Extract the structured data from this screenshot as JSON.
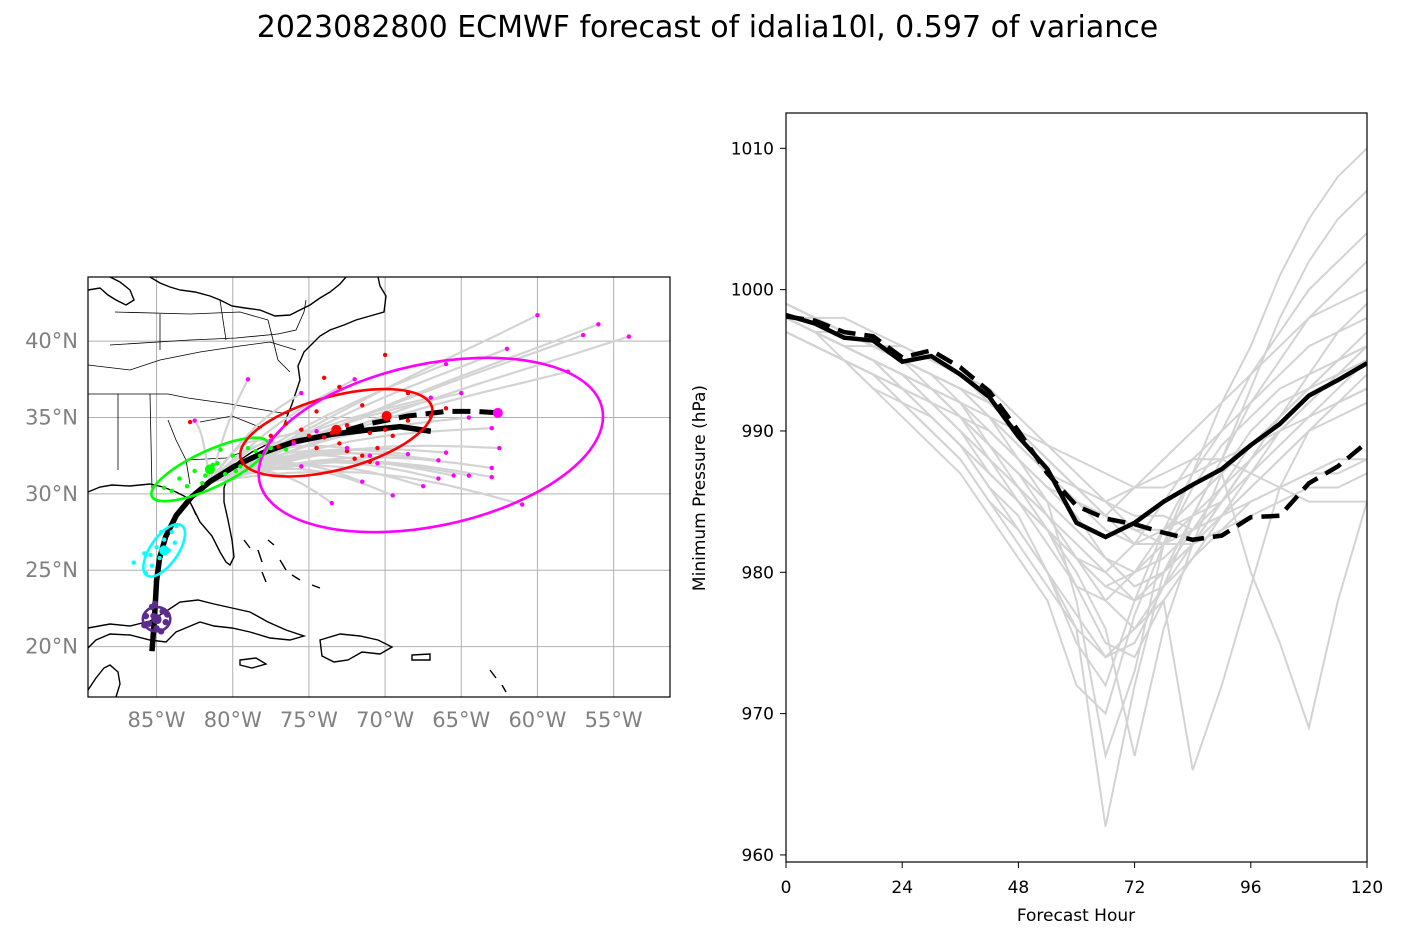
{
  "title": "2023082800 ECMWF forecast of idalia10l, 0.597 of variance",
  "colors": {
    "ensemble": "#d3d3d3",
    "mean": "#000000",
    "ellipse_f24": "#00ff00",
    "ellipse_f48": "#ff0000",
    "ellipse_f72": "#ff00ff",
    "ellipse_f0": "#5b2c8e",
    "ellipse_f12": "#00ffff",
    "grid": "#b0b0b0"
  },
  "chart_data": [
    {
      "type": "map",
      "lon_ticks": [
        -85,
        -80,
        -75,
        -70,
        -65,
        -60,
        -55
      ],
      "lon_labels": [
        "85°W",
        "80°W",
        "75°W",
        "70°W",
        "65°W",
        "60°W",
        "55°W"
      ],
      "lat_ticks": [
        20,
        25,
        30,
        35,
        40
      ],
      "lat_labels": [
        "20°N",
        "25°N",
        "30°N",
        "35°N",
        "40°N"
      ],
      "xlim": [
        -89.5,
        -51.3
      ],
      "ylim": [
        16.7,
        44.2
      ],
      "grid": true,
      "mean_track_solid": [
        [
          -85.3,
          19.7
        ],
        [
          -85.2,
          21
        ],
        [
          -85.1,
          22.5
        ],
        [
          -85.0,
          24.3
        ],
        [
          -84.8,
          25.8
        ],
        [
          -84.4,
          27.2
        ],
        [
          -83.7,
          28.6
        ],
        [
          -82.7,
          29.8
        ],
        [
          -81.5,
          30.8
        ],
        [
          -79.9,
          31.8
        ],
        [
          -78.0,
          32.7
        ],
        [
          -76.0,
          33.4
        ],
        [
          -73.5,
          33.9
        ],
        [
          -71.0,
          34.2
        ],
        [
          -69.0,
          34.4
        ],
        [
          -67.0,
          34.1
        ]
      ],
      "mean_track_dashed": [
        [
          -76.0,
          33.4
        ],
        [
          -73.5,
          33.9
        ],
        [
          -71.0,
          34.6
        ],
        [
          -68.5,
          35.1
        ],
        [
          -66.0,
          35.4
        ],
        [
          -64.0,
          35.4
        ],
        [
          -62.5,
          35.3
        ]
      ],
      "mean_markers": [
        [
          -85.0,
          21.8
        ],
        [
          -84.5,
          26.3
        ],
        [
          -81.5,
          31.6
        ],
        [
          -73.2,
          34.2
        ],
        [
          -69.9,
          35.1
        ],
        [
          -62.6,
          35.3
        ]
      ],
      "ellipses": [
        {
          "label": "f0",
          "cx": -85.0,
          "cy": 21.8,
          "rx": 0.9,
          "ry": 0.8,
          "angle": 0
        },
        {
          "label": "f12",
          "cx": -84.5,
          "cy": 26.3,
          "rx": 2.0,
          "ry": 0.9,
          "angle": -55
        },
        {
          "label": "f24",
          "cx": -81.5,
          "cy": 31.6,
          "rx": 4.2,
          "ry": 1.2,
          "angle": -25
        },
        {
          "label": "f48",
          "cx": -73.2,
          "cy": 34.0,
          "rx": 6.5,
          "ry": 2.4,
          "angle": -15
        },
        {
          "label": "f72",
          "cx": -67.0,
          "cy": 33.2,
          "rx": 11.5,
          "ry": 5.3,
          "angle": -12
        }
      ],
      "endpoints_magenta": [
        [
          -60,
          41.7
        ],
        [
          -56,
          41.1
        ],
        [
          -54,
          40.3
        ],
        [
          -58,
          38.0
        ],
        [
          -57,
          40.4
        ],
        [
          -62,
          39.5
        ],
        [
          -66,
          38.5
        ],
        [
          -65,
          36.6
        ],
        [
          -67,
          36.3
        ],
        [
          -63,
          34.3
        ],
        [
          -61,
          29.3
        ],
        [
          -63,
          31.7
        ],
        [
          -63,
          31.1
        ],
        [
          -64.5,
          31.2
        ],
        [
          -65.5,
          31.2
        ],
        [
          -66.5,
          31.0
        ],
        [
          -67.5,
          30.5
        ],
        [
          -69.5,
          29.9
        ],
        [
          -71.5,
          30.8
        ],
        [
          -73.5,
          29.4
        ],
        [
          -68.5,
          32.6
        ],
        [
          -66.5,
          32.2
        ],
        [
          -70.5,
          32.0
        ],
        [
          -72.5,
          33.0
        ],
        [
          -75.5,
          31.8
        ],
        [
          -74.5,
          34.1
        ],
        [
          -77.5,
          33.5
        ],
        [
          -79,
          37.5
        ],
        [
          -75.5,
          36.6
        ],
        [
          -72,
          37.5
        ],
        [
          -64.5,
          35.0
        ],
        [
          -66,
          32.7
        ],
        [
          -62.5,
          33.0
        ],
        [
          -71,
          32.5
        ],
        [
          -76,
          33.3
        ],
        [
          -82.5,
          34.8
        ]
      ],
      "endpoints_red": [
        [
          -70.0,
          39.1
        ],
        [
          -67,
          35.1
        ],
        [
          -66,
          35.6
        ],
        [
          -68.5,
          36.6
        ],
        [
          -71.5,
          35.8
        ],
        [
          -74,
          37.6
        ],
        [
          -73,
          37.0
        ],
        [
          -74.5,
          35.4
        ],
        [
          -75.5,
          34.2
        ],
        [
          -72.5,
          34.5
        ],
        [
          -71,
          34.0
        ],
        [
          -69.5,
          33.8
        ],
        [
          -70.5,
          33.0
        ],
        [
          -71.5,
          32.5
        ],
        [
          -72.5,
          32.8
        ],
        [
          -73,
          33.3
        ],
        [
          -74,
          33.7
        ],
        [
          -74.5,
          33.0
        ],
        [
          -76,
          33.4
        ],
        [
          -77,
          33.1
        ],
        [
          -77.5,
          33.8
        ],
        [
          -76.5,
          34.6
        ],
        [
          -75,
          33.8
        ],
        [
          -71,
          32.1
        ],
        [
          -72,
          32.3
        ],
        [
          -73.5,
          34.0
        ],
        [
          -70,
          34.2
        ],
        [
          -68.5,
          34.8
        ],
        [
          -82.8,
          34.7
        ]
      ],
      "endpoints_green": [
        [
          -84,
          30.2
        ],
        [
          -83,
          30.5
        ],
        [
          -82.5,
          31.5
        ],
        [
          -81.8,
          31.2
        ],
        [
          -81,
          32.0
        ],
        [
          -80,
          32.5
        ],
        [
          -79.5,
          31.8
        ],
        [
          -80.5,
          31.3
        ],
        [
          -79,
          33.0
        ],
        [
          -78.5,
          32.8
        ],
        [
          -77.5,
          33.0
        ],
        [
          -83.5,
          31.0
        ],
        [
          -80.8,
          32.9
        ],
        [
          -82,
          30.7
        ],
        [
          -79.8,
          31.5
        ],
        [
          -81.3,
          31.9
        ],
        [
          -78.2,
          32.5
        ],
        [
          -76.5,
          32.9
        ],
        [
          -84.5,
          30.4
        ]
      ],
      "endpoints_cyan": [
        [
          -86.5,
          25.5
        ],
        [
          -85.7,
          24.8
        ],
        [
          -85.4,
          26.0
        ],
        [
          -85.0,
          26.5
        ],
        [
          -84.5,
          27.0
        ],
        [
          -84.0,
          27.5
        ],
        [
          -83.8,
          26.8
        ],
        [
          -84.8,
          25.8
        ],
        [
          -85.3,
          25.3
        ],
        [
          -84.2,
          26.3
        ],
        [
          -84.7,
          27.5
        ],
        [
          -85.8,
          26.1
        ],
        [
          -83.7,
          27.9
        ]
      ],
      "endpoints_purple": [
        [
          -85.5,
          21.5
        ],
        [
          -85.2,
          22.0
        ],
        [
          -84.9,
          21.7
        ],
        [
          -84.6,
          22.3
        ],
        [
          -85.7,
          22.0
        ],
        [
          -85.0,
          21.2
        ],
        [
          -84.4,
          21.6
        ],
        [
          -85.3,
          22.6
        ],
        [
          -84.7,
          21.0
        ],
        [
          -85.8,
          21.4
        ],
        [
          -84.3,
          22.1
        ],
        [
          -85.1,
          22.8
        ]
      ]
    },
    {
      "type": "line",
      "xlabel": "Forecast Hour",
      "ylabel": "Minimum Pressure (hPa)",
      "x_ticks": [
        0,
        24,
        48,
        72,
        96,
        120
      ],
      "y_ticks": [
        960,
        970,
        980,
        990,
        1000,
        1010
      ],
      "xlim": [
        0,
        120
      ],
      "ylim": [
        959.5,
        1012.5
      ],
      "x": [
        0,
        6,
        12,
        18,
        24,
        30,
        36,
        42,
        48,
        54,
        60,
        66,
        72,
        78,
        84,
        90,
        96,
        102,
        108,
        114,
        120
      ],
      "series": [
        {
          "style": "solid",
          "values": [
            998.2,
            997.6,
            996.6,
            996.4,
            994.9,
            995.3,
            994.0,
            992.4,
            989.6,
            987.3,
            983.5,
            982.5,
            983.5,
            985.0,
            986.2,
            987.3,
            989.0,
            990.5,
            992.5,
            993.6,
            994.8
          ]
        },
        {
          "style": "dashed",
          "values": [
            998.1,
            997.8,
            997.0,
            996.7,
            995.2,
            995.7,
            994.5,
            992.8,
            990.0,
            987.0,
            984.7,
            983.8,
            983.4,
            982.8,
            982.3,
            982.6,
            983.9,
            984.0,
            986.3,
            987.5,
            989.2
          ]
        }
      ],
      "ensemble": [
        [
          998,
          997,
          995,
          993,
          992,
          990,
          988,
          985,
          983,
          980,
          975,
          972,
          978,
          983,
          987,
          990,
          994,
          997,
          1000,
          1002,
          1004
        ],
        [
          998,
          997,
          996,
          995,
          993,
          991,
          989,
          986,
          984,
          980,
          976,
          962,
          972,
          980,
          984,
          988,
          993,
          998,
          1002,
          1005,
          1007
        ],
        [
          999,
          998,
          997,
          996,
          995,
          994,
          993,
          991,
          988,
          985,
          978,
          967,
          973,
          982,
          987,
          992,
          996,
          1001,
          1005,
          1008,
          1010
        ],
        [
          997,
          996,
          995,
          993,
          991,
          989,
          987,
          984,
          981,
          978,
          972,
          970,
          977,
          982,
          986,
          989,
          991,
          993,
          994,
          995,
          996
        ],
        [
          998,
          997,
          996,
          995,
          994,
          992,
          990,
          987,
          985,
          983,
          980,
          976,
          967,
          976,
          982,
          987,
          990,
          992,
          993,
          994,
          995
        ],
        [
          999,
          998,
          997,
          996,
          995,
          994,
          992,
          989,
          986,
          983,
          979,
          975,
          974,
          978,
          966,
          972,
          979,
          986,
          990,
          992,
          994
        ],
        [
          998,
          997,
          996,
          995,
          994,
          993,
          991,
          988,
          985,
          982,
          979,
          978,
          980,
          983,
          985,
          987,
          980,
          975,
          969,
          978,
          985
        ],
        [
          997,
          996,
          995,
          994,
          992,
          991,
          989,
          987,
          985,
          983,
          981,
          980,
          982,
          985,
          988,
          990,
          992,
          994,
          996,
          997,
          998
        ],
        [
          998,
          997,
          996,
          995,
          994,
          993,
          991,
          990,
          988,
          986,
          985,
          984,
          986,
          988,
          990,
          992,
          994,
          996,
          998,
          999,
          1000
        ],
        [
          999,
          998,
          997,
          996,
          996,
          995,
          994,
          992,
          990,
          988,
          986,
          985,
          986,
          987,
          988,
          988,
          987,
          986,
          985,
          985,
          985
        ],
        [
          998,
          997,
          996,
          996,
          995,
          994,
          993,
          991,
          989,
          987,
          986,
          985,
          984,
          984,
          983,
          984,
          985,
          986,
          987,
          987,
          988
        ],
        [
          997,
          996,
          995,
          994,
          993,
          992,
          990,
          988,
          986,
          984,
          982,
          980,
          978,
          979,
          981,
          983,
          985,
          986,
          987,
          988,
          988
        ],
        [
          998,
          997,
          996,
          995,
          994,
          993,
          992,
          990,
          988,
          986,
          984,
          981,
          979,
          980,
          983,
          986,
          989,
          991,
          993,
          995,
          996
        ],
        [
          999,
          998,
          998,
          997,
          996,
          995,
          994,
          993,
          991,
          989,
          987,
          985,
          983,
          982,
          982,
          983,
          984,
          985,
          986,
          986,
          987
        ],
        [
          998,
          997,
          996,
          995,
          994,
          992,
          990,
          988,
          986,
          984,
          981,
          978,
          976,
          978,
          981,
          984,
          987,
          990,
          992,
          994,
          995
        ],
        [
          997,
          996,
          995,
          994,
          993,
          992,
          991,
          989,
          987,
          984,
          981,
          979,
          978,
          980,
          982,
          985,
          988,
          991,
          993,
          995,
          997
        ],
        [
          998,
          998,
          997,
          996,
          995,
          994,
          993,
          991,
          989,
          987,
          985,
          983,
          982,
          983,
          985,
          987,
          989,
          991,
          993,
          995,
          996
        ],
        [
          999,
          998,
          997,
          996,
          995,
          993,
          991,
          989,
          987,
          985,
          983,
          981,
          980,
          981,
          983,
          985,
          988,
          991,
          994,
          997,
          999
        ],
        [
          998,
          997,
          996,
          995,
          993,
          991,
          989,
          986,
          983,
          980,
          977,
          974,
          975,
          979,
          984,
          988,
          992,
          995,
          998,
          1000,
          1002
        ],
        [
          997,
          996,
          995,
          994,
          993,
          991,
          989,
          987,
          985,
          983,
          981,
          979,
          980,
          982,
          984,
          986,
          988,
          990,
          992,
          994,
          996
        ],
        [
          998,
          997,
          996,
          995,
          994,
          993,
          992,
          991,
          990,
          989,
          988,
          987,
          986,
          986,
          987,
          988,
          989,
          990,
          991,
          992,
          993
        ],
        [
          999,
          998,
          997,
          996,
          995,
          994,
          993,
          992,
          990,
          988,
          986,
          984,
          983,
          983,
          984,
          985,
          987,
          989,
          991,
          993,
          995
        ],
        [
          998,
          997,
          996,
          995,
          994,
          993,
          991,
          989,
          987,
          985,
          983,
          981,
          979,
          980,
          982,
          984,
          986,
          988,
          990,
          991,
          992
        ],
        [
          997,
          996,
          995,
          994,
          992,
          990,
          988,
          985,
          982,
          979,
          976,
          974,
          976,
          979,
          982,
          985,
          988,
          990,
          992,
          994,
          995
        ],
        [
          998,
          997,
          997,
          996,
          995,
          994,
          993,
          992,
          990,
          988,
          986,
          984,
          982,
          982,
          983,
          984,
          986,
          988,
          990,
          992,
          993
        ]
      ]
    }
  ]
}
